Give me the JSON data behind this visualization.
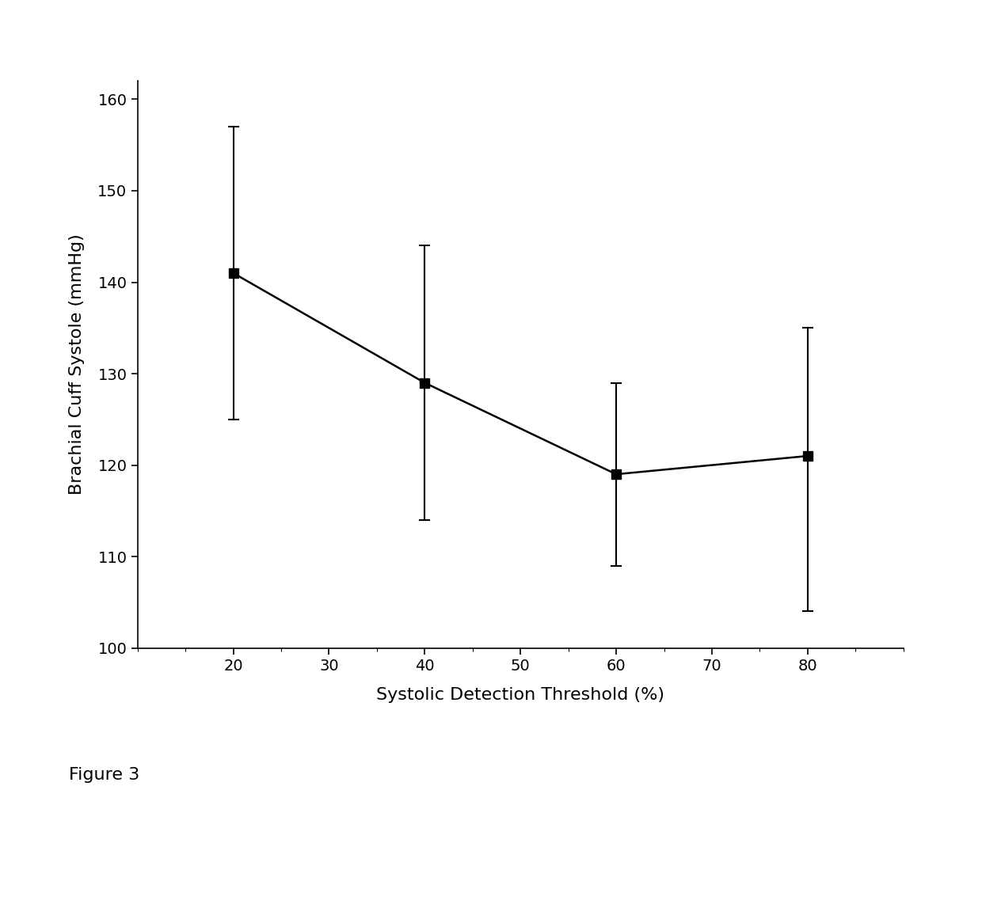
{
  "x": [
    20,
    40,
    60,
    80
  ],
  "y": [
    141.0,
    129.0,
    119.0,
    121.0
  ],
  "yerr_upper": [
    16.0,
    15.0,
    10.0,
    14.0
  ],
  "yerr_lower": [
    16.0,
    15.0,
    10.0,
    17.0
  ],
  "xlabel": "Systolic Detection Threshold (%)",
  "ylabel": "Brachial Cuff Systole (mmHg)",
  "xlim": [
    10,
    90
  ],
  "ylim": [
    100,
    162
  ],
  "xticks": [
    20,
    30,
    40,
    50,
    60,
    70,
    80
  ],
  "yticks": [
    100,
    110,
    120,
    130,
    140,
    150,
    160
  ],
  "figure_label": "Figure 3",
  "line_color": "#000000",
  "marker_color": "#000000",
  "background_color": "#ffffff",
  "marker_size": 9,
  "line_width": 1.8,
  "cap_size": 5,
  "error_line_width": 1.5
}
